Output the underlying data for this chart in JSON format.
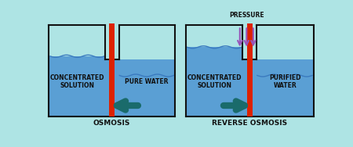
{
  "bg_color": "#aee4e4",
  "water_color": "#5a9fd4",
  "tank_edge_color": "#111111",
  "membrane_color": "#dd2200",
  "arrow_color": "#1a6b6b",
  "pressure_arrow_color": "#9955bb",
  "text_color": "#111111",
  "label_osmosis": "OSMOSIS",
  "label_reverse": "REVERSE OSMOSIS",
  "label_concentrated": "CONCENTRATED\nSOLUTION",
  "label_pure": "PURE WATER",
  "label_purified": "PURIFIED\nWATER",
  "label_pressure": "PRESSURE",
  "label_concentrated2": "CONCENTRATED\nSOLUTION",
  "lw": 1.5
}
